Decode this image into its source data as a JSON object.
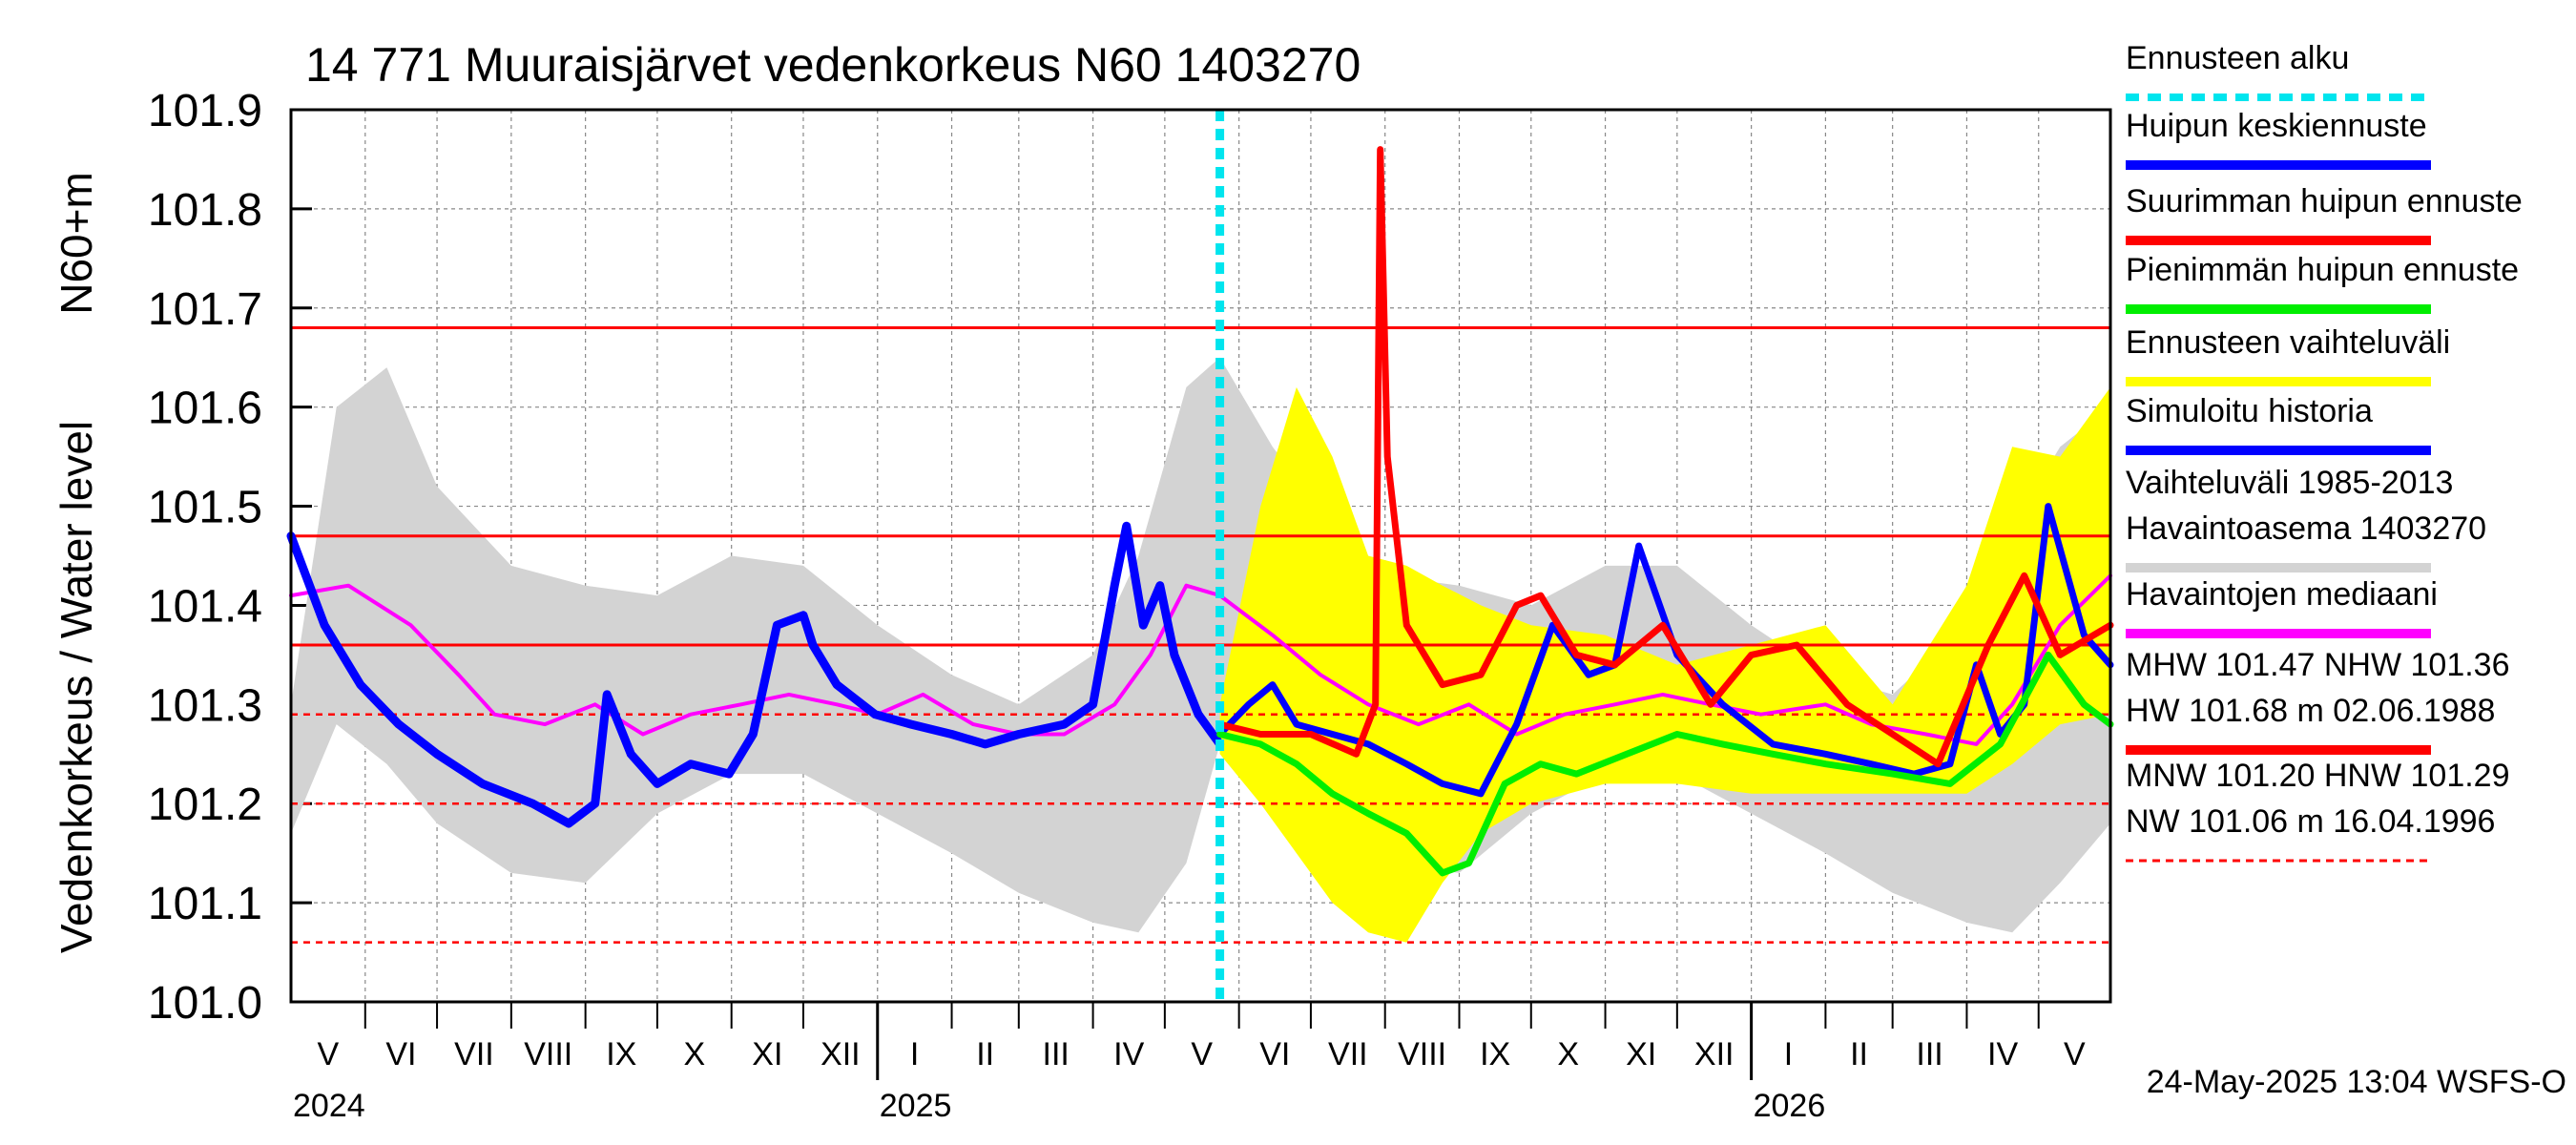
{
  "chart_data": {
    "type": "line",
    "title": "14 771 Muuraisjärvet vedenkorkeus N60 1403270",
    "ylabel_main": "Vedenkorkeus / Water level",
    "ylabel_unit": "N60+m",
    "ylim": [
      101.0,
      101.9
    ],
    "y_ticks": [
      "101.0",
      "101.1",
      "101.2",
      "101.3",
      "101.4",
      "101.5",
      "101.6",
      "101.7",
      "101.8",
      "101.9"
    ],
    "x_range": [
      "2024-05-01",
      "2026-05-31"
    ],
    "grid": true,
    "legend_position": "right",
    "months": [
      {
        "label": "V",
        "start": "2024-05-01",
        "end": "2024-06-01"
      },
      {
        "label": "VI",
        "start": "2024-06-01",
        "end": "2024-07-01"
      },
      {
        "label": "VII",
        "start": "2024-07-01",
        "end": "2024-08-01"
      },
      {
        "label": "VIII",
        "start": "2024-08-01",
        "end": "2024-09-01"
      },
      {
        "label": "IX",
        "start": "2024-09-01",
        "end": "2024-10-01"
      },
      {
        "label": "X",
        "start": "2024-10-01",
        "end": "2024-11-01"
      },
      {
        "label": "XI",
        "start": "2024-11-01",
        "end": "2024-12-01"
      },
      {
        "label": "XII",
        "start": "2024-12-01",
        "end": "2025-01-01"
      },
      {
        "label": "I",
        "start": "2025-01-01",
        "end": "2025-02-01"
      },
      {
        "label": "II",
        "start": "2025-02-01",
        "end": "2025-03-01"
      },
      {
        "label": "III",
        "start": "2025-03-01",
        "end": "2025-04-01"
      },
      {
        "label": "IV",
        "start": "2025-04-01",
        "end": "2025-05-01"
      },
      {
        "label": "V",
        "start": "2025-05-01",
        "end": "2025-06-01"
      },
      {
        "label": "VI",
        "start": "2025-06-01",
        "end": "2025-07-01"
      },
      {
        "label": "VII",
        "start": "2025-07-01",
        "end": "2025-08-01"
      },
      {
        "label": "VIII",
        "start": "2025-08-01",
        "end": "2025-09-01"
      },
      {
        "label": "IX",
        "start": "2025-09-01",
        "end": "2025-10-01"
      },
      {
        "label": "X",
        "start": "2025-10-01",
        "end": "2025-11-01"
      },
      {
        "label": "XI",
        "start": "2025-11-01",
        "end": "2025-12-01"
      },
      {
        "label": "XII",
        "start": "2025-12-01",
        "end": "2026-01-01"
      },
      {
        "label": "I",
        "start": "2026-01-01",
        "end": "2026-02-01"
      },
      {
        "label": "II",
        "start": "2026-02-01",
        "end": "2026-03-01"
      },
      {
        "label": "III",
        "start": "2026-03-01",
        "end": "2026-04-01"
      },
      {
        "label": "IV",
        "start": "2026-04-01",
        "end": "2026-05-01"
      },
      {
        "label": "V",
        "start": "2026-05-01",
        "end": "2026-05-31"
      }
    ],
    "years": [
      {
        "label": "2024",
        "date": "2024-05-01"
      },
      {
        "label": "2025",
        "date": "2025-01-01"
      },
      {
        "label": "2026",
        "date": "2026-01-01"
      }
    ],
    "forecast_start": "2025-05-24",
    "reference_lines": [
      {
        "name": "HW",
        "value": 101.68,
        "color": "#ff0000",
        "style": "solid"
      },
      {
        "name": "MHW",
        "value": 101.47,
        "color": "#ff0000",
        "style": "solid"
      },
      {
        "name": "NHW",
        "value": 101.36,
        "color": "#ff0000",
        "style": "solid"
      },
      {
        "name": "HNW",
        "value": 101.29,
        "color": "#ff0000",
        "style": "dashed"
      },
      {
        "name": "MNW",
        "value": 101.2,
        "color": "#ff0000",
        "style": "dashed"
      },
      {
        "name": "NW",
        "value": 101.06,
        "color": "#ff0000",
        "style": "dashed"
      }
    ],
    "variation_band": {
      "name": "Vaihteluväli 1985-2013 Havaintoasema 1403270",
      "color": "#d3d3d3",
      "x": [
        "2024-05-01",
        "2024-05-20",
        "2024-06-10",
        "2024-07-01",
        "2024-08-01",
        "2024-09-01",
        "2024-10-01",
        "2024-11-01",
        "2024-12-01",
        "2025-01-01",
        "2025-02-01",
        "2025-03-01",
        "2025-04-01",
        "2025-04-20",
        "2025-05-10",
        "2025-05-24",
        "2025-06-15",
        "2025-07-10",
        "2025-08-01",
        "2025-09-01",
        "2025-10-01",
        "2025-11-01",
        "2025-12-01",
        "2026-01-01",
        "2026-02-01",
        "2026-03-01",
        "2026-04-01",
        "2026-04-20",
        "2026-05-10",
        "2026-05-31"
      ],
      "upper": [
        101.3,
        101.6,
        101.64,
        101.52,
        101.44,
        101.42,
        101.41,
        101.45,
        101.44,
        101.38,
        101.33,
        101.3,
        101.35,
        101.45,
        101.62,
        101.65,
        101.56,
        101.48,
        101.43,
        101.42,
        101.4,
        101.44,
        101.44,
        101.38,
        101.33,
        101.31,
        101.38,
        101.48,
        101.56,
        101.6
      ],
      "lower": [
        101.17,
        101.28,
        101.24,
        101.18,
        101.13,
        101.12,
        101.19,
        101.23,
        101.23,
        101.19,
        101.15,
        101.11,
        101.08,
        101.07,
        101.14,
        101.26,
        101.22,
        101.18,
        101.14,
        101.13,
        101.19,
        101.23,
        101.23,
        101.19,
        101.15,
        101.11,
        101.08,
        101.07,
        101.12,
        101.18
      ]
    },
    "forecast_band": {
      "name": "Ennusteen vaihteluväli",
      "color": "#ffff00",
      "x": [
        "2025-05-24",
        "2025-06-10",
        "2025-06-25",
        "2025-07-10",
        "2025-07-25",
        "2025-08-10",
        "2025-08-25",
        "2025-09-10",
        "2025-10-01",
        "2025-11-01",
        "2025-12-01",
        "2026-01-01",
        "2026-02-01",
        "2026-03-01",
        "2026-04-01",
        "2026-04-20",
        "2026-05-10",
        "2026-05-31"
      ],
      "upper": [
        101.3,
        101.5,
        101.62,
        101.55,
        101.45,
        101.44,
        101.42,
        101.4,
        101.38,
        101.37,
        101.34,
        101.36,
        101.38,
        101.3,
        101.42,
        101.56,
        101.55,
        101.62
      ],
      "lower": [
        101.25,
        101.2,
        101.15,
        101.1,
        101.07,
        101.06,
        101.12,
        101.17,
        101.2,
        101.22,
        101.22,
        101.21,
        101.21,
        101.21,
        101.21,
        101.24,
        101.28,
        101.29
      ]
    },
    "series": [
      {
        "name": "Havaintojen mediaani",
        "color": "#ff00ff",
        "width": 4,
        "x": [
          "2024-05-01",
          "2024-05-25",
          "2024-06-20",
          "2024-07-10",
          "2024-07-25",
          "2024-08-15",
          "2024-09-05",
          "2024-09-25",
          "2024-10-15",
          "2024-11-05",
          "2024-11-25",
          "2024-12-15",
          "2025-01-01",
          "2025-01-20",
          "2025-02-10",
          "2025-03-01",
          "2025-03-20",
          "2025-04-10",
          "2025-04-25",
          "2025-05-10",
          "2025-05-24",
          "2025-06-15",
          "2025-07-05",
          "2025-07-25",
          "2025-08-15",
          "2025-09-05",
          "2025-09-25",
          "2025-10-15",
          "2025-11-05",
          "2025-11-25",
          "2025-12-15",
          "2026-01-05",
          "2026-02-01",
          "2026-02-20",
          "2026-03-15",
          "2026-04-05",
          "2026-04-20",
          "2026-05-10",
          "2026-05-31"
        ],
        "y": [
          101.41,
          101.42,
          101.38,
          101.33,
          101.29,
          101.28,
          101.3,
          101.27,
          101.29,
          101.3,
          101.31,
          101.3,
          101.29,
          101.31,
          101.28,
          101.27,
          101.27,
          101.3,
          101.35,
          101.42,
          101.41,
          101.37,
          101.33,
          101.3,
          101.28,
          101.3,
          101.27,
          101.29,
          101.3,
          101.31,
          101.3,
          101.29,
          101.3,
          101.28,
          101.27,
          101.26,
          101.3,
          101.38,
          101.43
        ]
      },
      {
        "name": "Simuloitu historia",
        "color": "#0000ff",
        "width": 9,
        "x": [
          "2024-05-01",
          "2024-05-15",
          "2024-05-30",
          "2024-06-15",
          "2024-07-01",
          "2024-07-20",
          "2024-08-10",
          "2024-08-25",
          "2024-09-05",
          "2024-09-10",
          "2024-09-20",
          "2024-10-01",
          "2024-10-15",
          "2024-10-31",
          "2024-11-10",
          "2024-11-20",
          "2024-12-01",
          "2024-12-05",
          "2024-12-15",
          "2024-12-31",
          "2025-01-15",
          "2025-02-01",
          "2025-02-15",
          "2025-03-01",
          "2025-03-20",
          "2025-04-01",
          "2025-04-10",
          "2025-04-15",
          "2025-04-22",
          "2025-04-29",
          "2025-05-05",
          "2025-05-15",
          "2025-05-24"
        ],
        "y": [
          101.47,
          101.38,
          101.32,
          101.28,
          101.25,
          101.22,
          101.2,
          101.18,
          101.2,
          101.31,
          101.25,
          101.22,
          101.24,
          101.23,
          101.27,
          101.38,
          101.39,
          101.36,
          101.32,
          101.29,
          101.28,
          101.27,
          101.26,
          101.27,
          101.28,
          101.3,
          101.42,
          101.48,
          101.38,
          101.42,
          101.35,
          101.29,
          101.26
        ]
      },
      {
        "name": "Huipun keskiennuste",
        "color": "#0000ff",
        "width": 7,
        "x": [
          "2025-05-24",
          "2025-06-05",
          "2025-06-15",
          "2025-06-25",
          "2025-07-10",
          "2025-07-25",
          "2025-08-10",
          "2025-08-25",
          "2025-09-10",
          "2025-09-25",
          "2025-10-10",
          "2025-10-25",
          "2025-11-05",
          "2025-11-15",
          "2025-12-01",
          "2025-12-20",
          "2026-01-10",
          "2026-02-01",
          "2026-02-20",
          "2026-03-10",
          "2026-03-25",
          "2026-04-05",
          "2026-04-15",
          "2026-04-25",
          "2026-05-05",
          "2026-05-20",
          "2026-05-31"
        ],
        "y": [
          101.27,
          101.3,
          101.32,
          101.28,
          101.27,
          101.26,
          101.24,
          101.22,
          101.21,
          101.28,
          101.38,
          101.33,
          101.34,
          101.46,
          101.35,
          101.3,
          101.26,
          101.25,
          101.24,
          101.23,
          101.24,
          101.34,
          101.27,
          101.3,
          101.5,
          101.37,
          101.34
        ]
      },
      {
        "name": "Pienimmän huipun ennuste",
        "color": "#00ee00",
        "width": 7,
        "x": [
          "2025-05-24",
          "2025-06-10",
          "2025-06-25",
          "2025-07-10",
          "2025-07-25",
          "2025-08-10",
          "2025-08-25",
          "2025-09-05",
          "2025-09-20",
          "2025-10-05",
          "2025-10-20",
          "2025-11-10",
          "2025-12-01",
          "2025-12-20",
          "2026-01-10",
          "2026-02-01",
          "2026-03-01",
          "2026-03-25",
          "2026-04-15",
          "2026-05-05",
          "2026-05-20",
          "2026-05-31"
        ],
        "y": [
          101.27,
          101.26,
          101.24,
          101.21,
          101.19,
          101.17,
          101.13,
          101.14,
          101.22,
          101.24,
          101.23,
          101.25,
          101.27,
          101.26,
          101.25,
          101.24,
          101.23,
          101.22,
          101.26,
          101.35,
          101.3,
          101.28
        ]
      },
      {
        "name": "Suurimman huipun ennuste",
        "color": "#ff0000",
        "width": 7,
        "x": [
          "2025-05-24",
          "2025-06-10",
          "2025-07-01",
          "2025-07-20",
          "2025-07-28",
          "2025-07-30",
          "2025-08-02",
          "2025-08-10",
          "2025-08-25",
          "2025-09-10",
          "2025-09-25",
          "2025-10-05",
          "2025-10-20",
          "2025-11-05",
          "2025-11-25",
          "2025-12-15",
          "2026-01-01",
          "2026-01-20",
          "2026-02-10",
          "2026-03-01",
          "2026-03-20",
          "2026-04-10",
          "2026-04-25",
          "2026-05-10",
          "2026-05-31"
        ],
        "y": [
          101.28,
          101.27,
          101.27,
          101.25,
          101.3,
          101.86,
          101.55,
          101.38,
          101.32,
          101.33,
          101.4,
          101.41,
          101.35,
          101.34,
          101.38,
          101.3,
          101.35,
          101.36,
          101.3,
          101.27,
          101.24,
          101.36,
          101.43,
          101.35,
          101.38
        ]
      }
    ],
    "legend": [
      {
        "label": "Ennusteen alku",
        "color": "#00e5ee",
        "style": "dotted"
      },
      {
        "label": "Huipun keskiennuste",
        "color": "#0000ff",
        "style": "solid"
      },
      {
        "label": "Suurimman huipun ennuste",
        "color": "#ff0000",
        "style": "solid"
      },
      {
        "label": "Pienimmän huipun ennuste",
        "color": "#00ee00",
        "style": "solid"
      },
      {
        "label": "Ennusteen vaihteluväli",
        "color": "#ffff00",
        "style": "solid"
      },
      {
        "label": "Simuloitu historia",
        "color": "#0000ff",
        "style": "solid"
      },
      {
        "label": "Vaihteluväli 1985-2013",
        "label2": " Havaintoasema 1403270",
        "color": "#d3d3d3",
        "style": "solid"
      },
      {
        "label": "Havaintojen mediaani",
        "color": "#ff00ff",
        "style": "solid"
      },
      {
        "label": "MHW 101.47 NHW 101.36",
        "label2": "HW 101.68 m 02.06.1988",
        "color": "#ff0000",
        "style": "solid"
      },
      {
        "label": "MNW 101.20 HNW 101.29",
        "label2": "NW 101.06 m 16.04.1996",
        "color": "#ff0000",
        "style": "dashed"
      }
    ],
    "footer": "24-May-2025 13:04 WSFS-O"
  }
}
